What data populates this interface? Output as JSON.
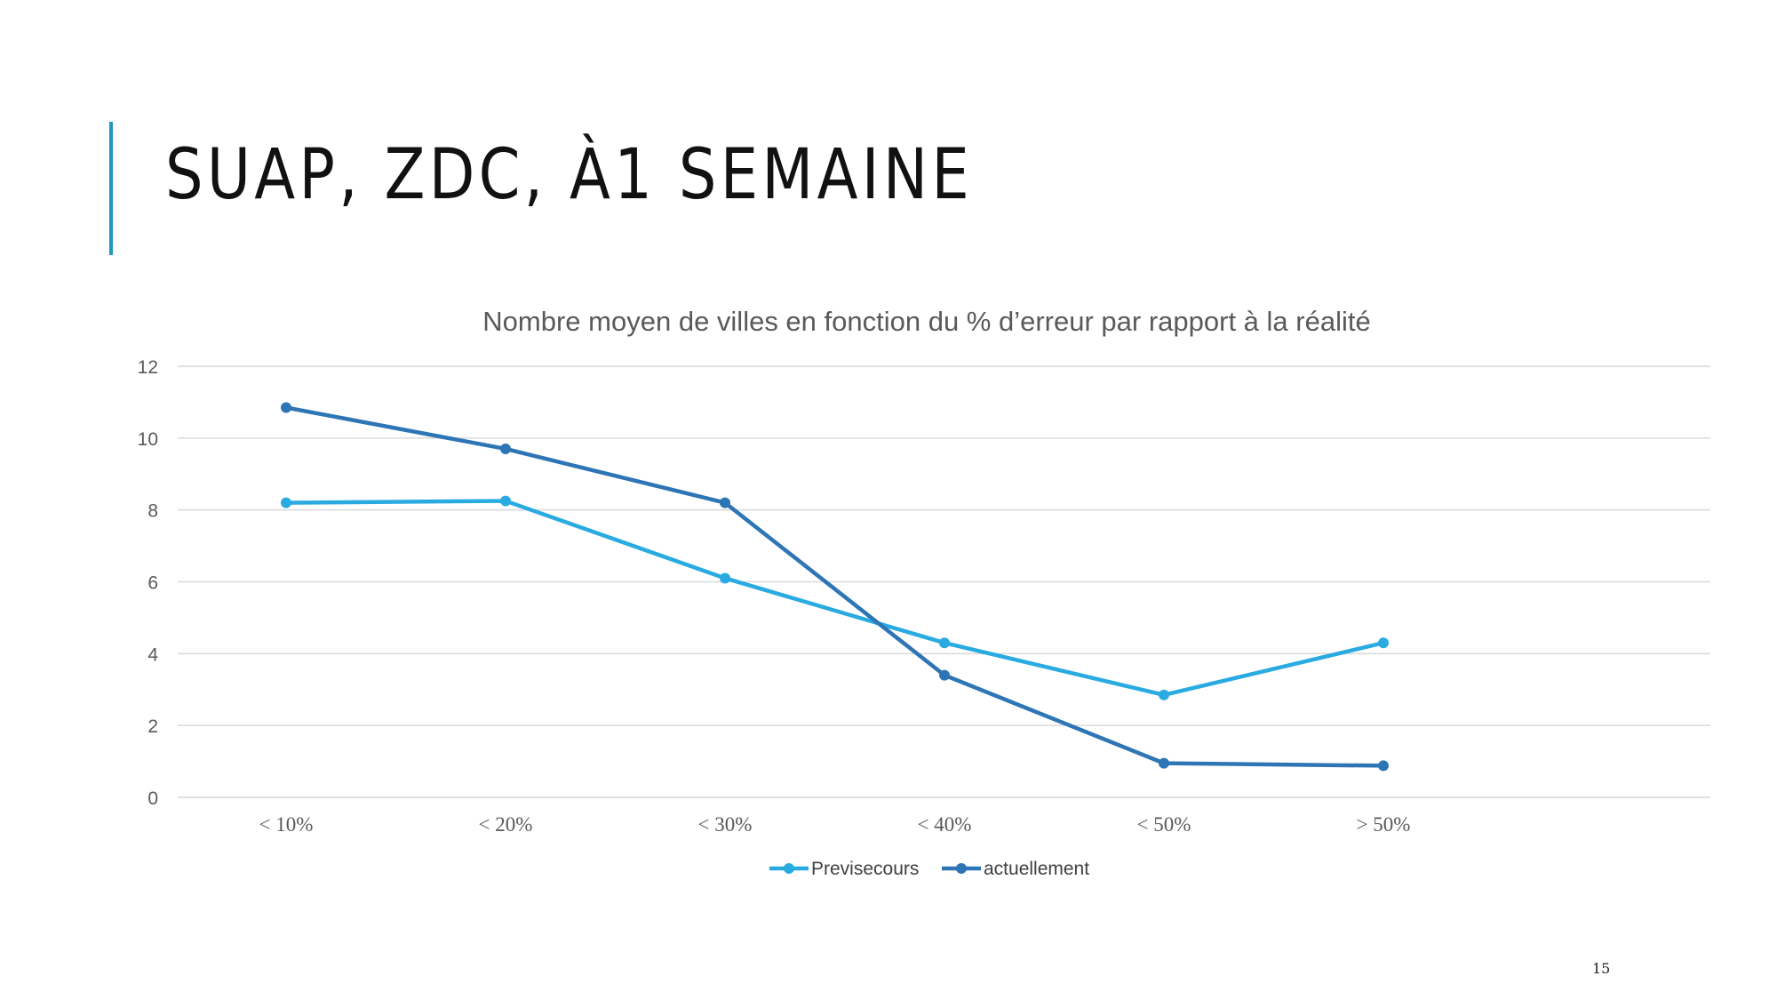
{
  "slide": {
    "title": "SUAP, ZDC, À1 SEMAINE",
    "page_number": "15",
    "accent_color": "#2596be"
  },
  "chart_data": {
    "type": "line",
    "title": "Nombre moyen de villes en fonction du % d’erreur par rapport à la réalité",
    "xlabel": "",
    "ylabel": "",
    "categories": [
      "< 10%",
      "< 20%",
      "< 30%",
      "< 40%",
      "< 50%",
      "> 50%"
    ],
    "series": [
      {
        "name": "Previsecours",
        "color": "#29abe2",
        "values": [
          8.2,
          8.25,
          6.1,
          4.3,
          2.85,
          4.3
        ]
      },
      {
        "name": "actuellement",
        "color": "#2e75b6",
        "values": [
          10.85,
          9.7,
          8.2,
          3.4,
          0.95,
          0.88
        ]
      }
    ],
    "ylim": [
      0,
      12
    ],
    "yticks": [
      0,
      2,
      4,
      6,
      8,
      10,
      12
    ],
    "grid": true,
    "legend_position": "bottom"
  }
}
